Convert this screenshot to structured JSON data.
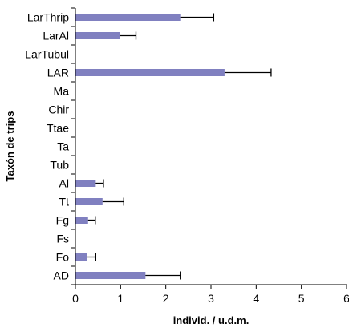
{
  "chart_data": {
    "type": "bar",
    "orientation": "horizontal",
    "categories": [
      "LarThrip",
      "LarAl",
      "LarTubul",
      "LAR",
      "Ma",
      "Chir",
      "Ttae",
      "Ta",
      "Tub",
      "Al",
      "Tt",
      "Fg",
      "Fs",
      "Fo",
      "AD"
    ],
    "values": [
      2.32,
      0.98,
      0,
      3.3,
      0,
      0,
      0,
      0,
      0,
      0.45,
      0.6,
      0.28,
      0,
      0.25,
      1.55
    ],
    "error_plus": [
      0.74,
      0.36,
      0,
      1.03,
      0,
      0,
      0,
      0,
      0,
      0.17,
      0.47,
      0.16,
      0,
      0.2,
      0.77
    ],
    "xlabel": "individ. / u.d.m.",
    "ylabel": "Taxón de trips",
    "xlim": [
      0,
      6
    ],
    "xticks": [
      0,
      1,
      2,
      3,
      4,
      5,
      6
    ],
    "grid": false,
    "bar_color": "#8080C0",
    "error_bar_color": "#000000"
  }
}
